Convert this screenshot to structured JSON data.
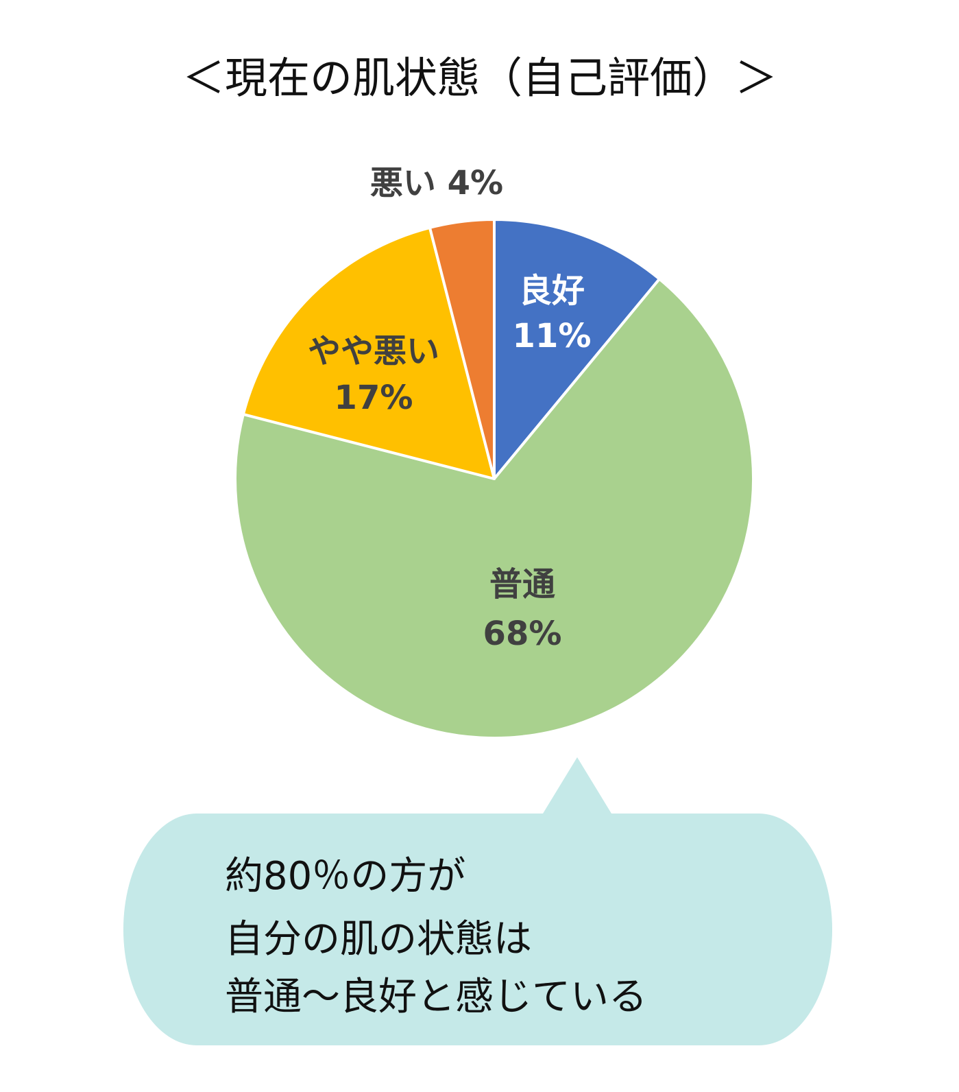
{
  "chart_data": {
    "type": "pie",
    "title": "＜現在の肌状態（自己評価）＞",
    "slices": [
      {
        "label": "良好",
        "value": 11,
        "value_text": "11%",
        "color": "#4472C4",
        "label_color": "#FFFFFF"
      },
      {
        "label": "普通",
        "value": 68,
        "value_text": "68%",
        "color": "#A9D18E",
        "label_color": "#404040"
      },
      {
        "label": "やや悪い",
        "value": 17,
        "value_text": "17%",
        "color": "#FFC000",
        "label_color": "#404040"
      },
      {
        "label": "悪い",
        "value": 4,
        "value_text": "4%",
        "color": "#ED7D31",
        "label_color": "#404040"
      }
    ],
    "start_angle_deg": 0,
    "direction": "clockwise",
    "legend": "none"
  },
  "callout": {
    "lines": [
      "約80％の方が",
      "自分の肌の状態は",
      "普通～良好と感じている"
    ],
    "color": "#C5E9E8"
  }
}
